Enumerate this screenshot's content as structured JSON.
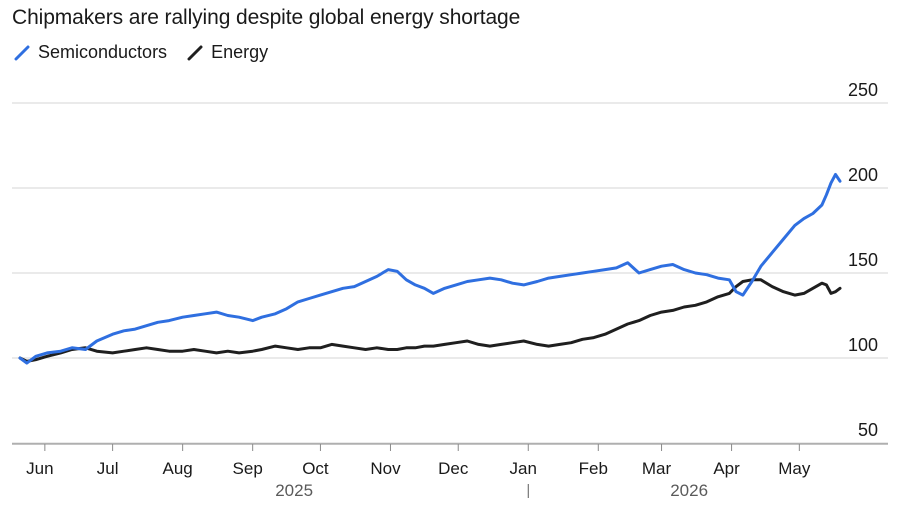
{
  "chart_data": {
    "type": "line",
    "title": "Chipmakers are rallying despite global energy shortage",
    "xlabel": "",
    "ylabel": "",
    "ylim": [
      50,
      250
    ],
    "yticks": [
      50,
      100,
      150,
      200,
      250
    ],
    "grid": true,
    "legend_position": "top-left",
    "x_tick_labels": [
      "Jun",
      "Jul",
      "Aug",
      "Sep",
      "Oct",
      "Nov",
      "Dec",
      "Jan",
      "Feb",
      "Mar",
      "Apr",
      "May"
    ],
    "year_labels": [
      "2025",
      "2026"
    ],
    "x_start": "2025-05-21",
    "x_end": "2026-05-19",
    "series": [
      {
        "name": "Semiconductors",
        "color": "#2f6fe0",
        "x": [
          "2025-05-21",
          "2025-05-24",
          "2025-05-28",
          "2025-06-02",
          "2025-06-08",
          "2025-06-13",
          "2025-06-19",
          "2025-06-24",
          "2025-07-01",
          "2025-07-06",
          "2025-07-11",
          "2025-07-16",
          "2025-07-21",
          "2025-07-26",
          "2025-08-01",
          "2025-08-06",
          "2025-08-11",
          "2025-08-16",
          "2025-08-21",
          "2025-08-26",
          "2025-09-01",
          "2025-09-05",
          "2025-09-11",
          "2025-09-16",
          "2025-09-21",
          "2025-09-26",
          "2025-10-01",
          "2025-10-06",
          "2025-10-11",
          "2025-10-16",
          "2025-10-21",
          "2025-10-26",
          "2025-10-31",
          "2025-11-04",
          "2025-11-08",
          "2025-11-12",
          "2025-11-16",
          "2025-11-20",
          "2025-11-25",
          "2025-11-30",
          "2025-12-05",
          "2025-12-10",
          "2025-12-15",
          "2025-12-20",
          "2025-12-25",
          "2025-12-30",
          "2026-01-05",
          "2026-01-10",
          "2026-01-15",
          "2026-01-20",
          "2026-01-25",
          "2026-01-30",
          "2026-02-04",
          "2026-02-09",
          "2026-02-14",
          "2026-02-19",
          "2026-02-24",
          "2026-03-01",
          "2026-03-06",
          "2026-03-11",
          "2026-03-16",
          "2026-03-21",
          "2026-03-26",
          "2026-03-31",
          "2026-04-03",
          "2026-04-06",
          "2026-04-10",
          "2026-04-14",
          "2026-04-19",
          "2026-04-24",
          "2026-04-29",
          "2026-05-03",
          "2026-05-07",
          "2026-05-11",
          "2026-05-13",
          "2026-05-15",
          "2026-05-17",
          "2026-05-19"
        ],
        "y": [
          100,
          97,
          101,
          103,
          104,
          106,
          105,
          110,
          114,
          116,
          117,
          119,
          121,
          122,
          124,
          125,
          126,
          127,
          125,
          124,
          122,
          124,
          126,
          129,
          133,
          135,
          137,
          139,
          141,
          142,
          145,
          148,
          152,
          151,
          146,
          143,
          141,
          138,
          141,
          143,
          145,
          146,
          147,
          146,
          144,
          143,
          145,
          147,
          148,
          149,
          150,
          151,
          152,
          153,
          156,
          150,
          152,
          154,
          155,
          152,
          150,
          149,
          147,
          146,
          139,
          137,
          145,
          154,
          162,
          170,
          178,
          182,
          185,
          190,
          196,
          203,
          208,
          204
        ]
      },
      {
        "name": "Energy",
        "color": "#1f1f1f",
        "x": [
          "2025-05-21",
          "2025-05-24",
          "2025-05-28",
          "2025-06-02",
          "2025-06-08",
          "2025-06-13",
          "2025-06-19",
          "2025-06-24",
          "2025-07-01",
          "2025-07-06",
          "2025-07-11",
          "2025-07-16",
          "2025-07-21",
          "2025-07-26",
          "2025-08-01",
          "2025-08-06",
          "2025-08-11",
          "2025-08-16",
          "2025-08-21",
          "2025-08-26",
          "2025-09-01",
          "2025-09-05",
          "2025-09-11",
          "2025-09-16",
          "2025-09-21",
          "2025-09-26",
          "2025-10-01",
          "2025-10-06",
          "2025-10-11",
          "2025-10-16",
          "2025-10-21",
          "2025-10-26",
          "2025-10-31",
          "2025-11-04",
          "2025-11-08",
          "2025-11-12",
          "2025-11-16",
          "2025-11-20",
          "2025-11-25",
          "2025-11-30",
          "2025-12-05",
          "2025-12-10",
          "2025-12-15",
          "2025-12-20",
          "2025-12-25",
          "2025-12-30",
          "2026-01-05",
          "2026-01-10",
          "2026-01-15",
          "2026-01-20",
          "2026-01-25",
          "2026-01-30",
          "2026-02-04",
          "2026-02-09",
          "2026-02-14",
          "2026-02-19",
          "2026-02-24",
          "2026-03-01",
          "2026-03-06",
          "2026-03-11",
          "2026-03-16",
          "2026-03-21",
          "2026-03-26",
          "2026-03-31",
          "2026-04-03",
          "2026-04-06",
          "2026-04-10",
          "2026-04-14",
          "2026-04-19",
          "2026-04-24",
          "2026-04-29",
          "2026-05-03",
          "2026-05-07",
          "2026-05-11",
          "2026-05-13",
          "2026-05-15",
          "2026-05-17",
          "2026-05-19"
        ],
        "y": [
          100,
          98,
          99,
          101,
          103,
          105,
          106,
          104,
          103,
          104,
          105,
          106,
          105,
          104,
          104,
          105,
          104,
          103,
          104,
          103,
          104,
          105,
          107,
          106,
          105,
          106,
          106,
          108,
          107,
          106,
          105,
          106,
          105,
          105,
          106,
          106,
          107,
          107,
          108,
          109,
          110,
          108,
          107,
          108,
          109,
          110,
          108,
          107,
          108,
          109,
          111,
          112,
          114,
          117,
          120,
          122,
          125,
          127,
          128,
          130,
          131,
          133,
          136,
          138,
          142,
          145,
          146,
          146,
          142,
          139,
          137,
          138,
          141,
          144,
          143,
          138,
          139,
          141
        ]
      }
    ]
  }
}
